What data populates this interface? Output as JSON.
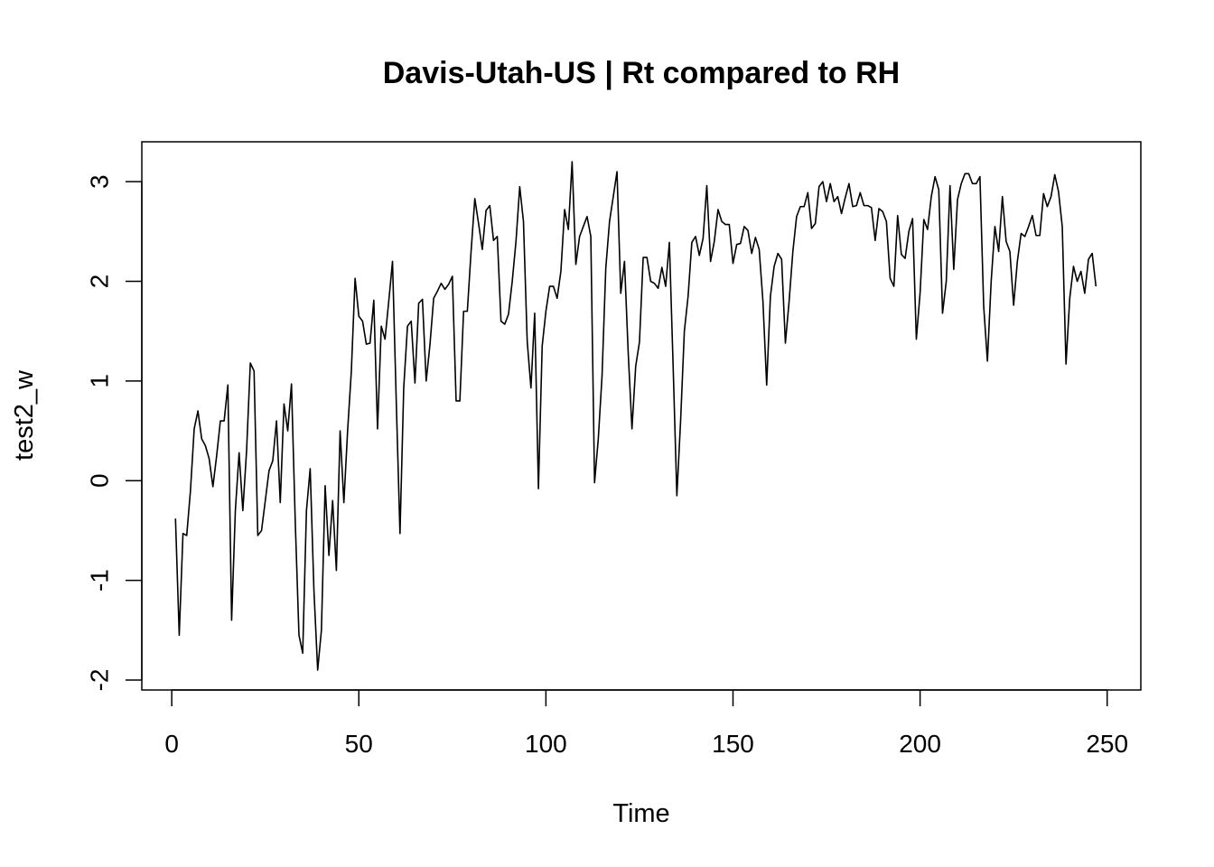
{
  "chart_data": {
    "type": "line",
    "title": "Davis-Utah-US | Rt compared to RH",
    "xlabel": "Time",
    "ylabel": "test2_w",
    "xlim": [
      -8,
      259
    ],
    "ylim": [
      -2.1,
      3.4
    ],
    "xticks": [
      0,
      50,
      100,
      150,
      200,
      250
    ],
    "yticks": [
      -2,
      -1,
      0,
      1,
      2,
      3
    ],
    "grid": false,
    "legend": "none",
    "line_color": "#000000",
    "x_start": 1,
    "series": [
      {
        "values": [
          -0.38,
          -1.55,
          -0.53,
          -0.55,
          -0.1,
          0.52,
          0.7,
          0.42,
          0.35,
          0.22,
          -0.06,
          0.25,
          0.6,
          0.6,
          0.96,
          -1.4,
          -0.3,
          0.28,
          -0.3,
          0.3,
          1.18,
          1.1,
          -0.55,
          -0.5,
          -0.2,
          0.1,
          0.2,
          0.6,
          -0.22,
          0.77,
          0.5,
          0.97,
          -0.4,
          -1.55,
          -1.73,
          -0.3,
          0.12,
          -1.1,
          -1.9,
          -1.5,
          -0.05,
          -0.75,
          -0.2,
          -0.9,
          0.5,
          -0.22,
          0.5,
          1.1,
          2.03,
          1.65,
          1.6,
          1.37,
          1.38,
          1.81,
          0.52,
          1.55,
          1.42,
          1.8,
          2.2,
          0.8,
          -0.53,
          0.93,
          1.55,
          1.6,
          0.98,
          1.78,
          1.82,
          1.0,
          1.36,
          1.83,
          1.9,
          1.98,
          1.92,
          1.97,
          2.05,
          0.8,
          0.8,
          1.7,
          1.7,
          2.3,
          2.83,
          2.58,
          2.32,
          2.71,
          2.76,
          2.41,
          2.45,
          1.6,
          1.57,
          1.67,
          2.0,
          2.4,
          2.95,
          2.6,
          1.4,
          0.93,
          1.68,
          -0.08,
          1.35,
          1.7,
          1.95,
          1.95,
          1.83,
          2.1,
          2.72,
          2.52,
          3.2,
          2.17,
          2.45,
          2.55,
          2.65,
          2.45,
          -0.02,
          0.42,
          1.05,
          2.13,
          2.6,
          2.85,
          3.1,
          1.88,
          2.2,
          1.28,
          0.52,
          1.15,
          1.39,
          2.24,
          2.24,
          2.0,
          1.98,
          1.93,
          2.14,
          1.95,
          2.39,
          1.15,
          -0.15,
          0.6,
          1.5,
          1.85,
          2.39,
          2.45,
          2.26,
          2.43,
          2.96,
          2.2,
          2.4,
          2.72,
          2.6,
          2.57,
          2.57,
          2.18,
          2.37,
          2.38,
          2.55,
          2.51,
          2.28,
          2.44,
          2.32,
          1.8,
          0.96,
          1.85,
          2.15,
          2.28,
          2.22,
          1.38,
          1.8,
          2.3,
          2.65,
          2.75,
          2.75,
          2.89,
          2.53,
          2.58,
          2.95,
          3.0,
          2.8,
          2.98,
          2.8,
          2.85,
          2.68,
          2.84,
          2.98,
          2.75,
          2.76,
          2.89,
          2.76,
          2.76,
          2.74,
          2.41,
          2.73,
          2.7,
          2.6,
          2.03,
          1.95,
          2.66,
          2.27,
          2.23,
          2.5,
          2.63,
          1.42,
          1.88,
          2.62,
          2.52,
          2.85,
          3.05,
          2.92,
          1.68,
          2.0,
          2.96,
          2.12,
          2.82,
          2.98,
          3.08,
          3.08,
          2.98,
          2.98,
          3.05,
          1.75,
          1.2,
          2.0,
          2.55,
          2.3,
          2.85,
          2.4,
          2.3,
          1.76,
          2.2,
          2.48,
          2.45,
          2.55,
          2.66,
          2.46,
          2.46,
          2.88,
          2.75,
          2.85,
          3.07,
          2.9,
          2.55,
          1.17,
          1.83,
          2.15,
          2.0,
          2.1,
          1.88,
          2.22,
          2.28,
          1.95
        ]
      }
    ]
  }
}
